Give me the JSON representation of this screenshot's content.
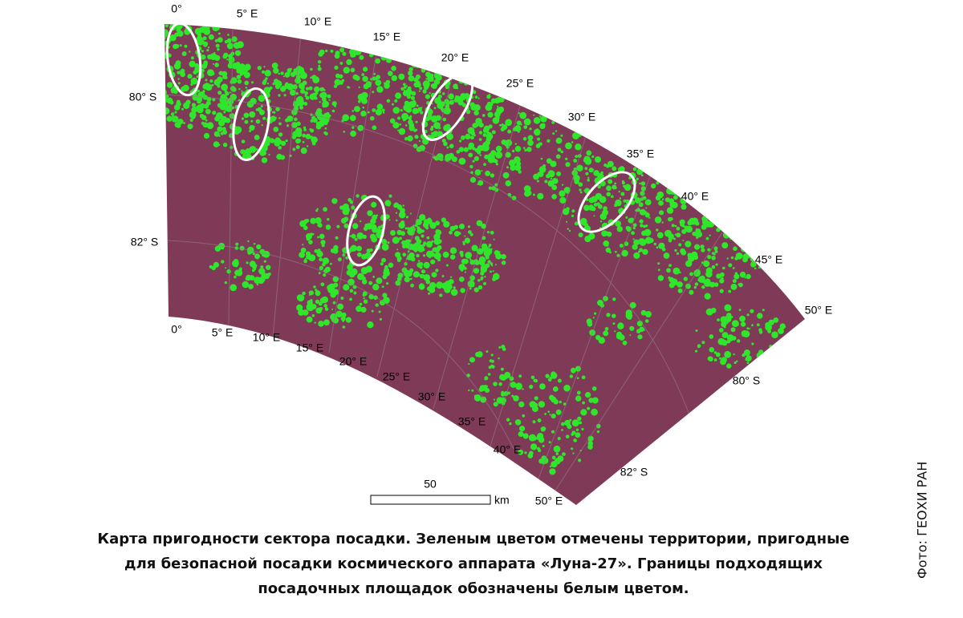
{
  "map": {
    "top_labels": [
      "0°",
      "5° E",
      "10° E",
      "15° E",
      "20° E",
      "25° E",
      "30° E",
      "35° E",
      "40° E",
      "45° E",
      "50° E"
    ],
    "bottom_labels": [
      "0°",
      "5° E",
      "10° E",
      "15° E",
      "20° E",
      "25° E",
      "30° E",
      "35° E",
      "40° E",
      "50° E"
    ],
    "latitude_labels": [
      "80° S",
      "82° S",
      "80° S",
      "82° S"
    ],
    "scale_bar": {
      "value": "50",
      "unit": "km"
    }
  },
  "caption": [
    "Карта пригодности сектора посадки. Зеленым цветом отмечены территории, пригодные",
    "для безопасной посадки космического аппарата «Луна-27». Границы подходящих",
    "посадочных площадок обозначены белым цветом."
  ],
  "credit": "Фото: ГЕОХИ РАН"
}
